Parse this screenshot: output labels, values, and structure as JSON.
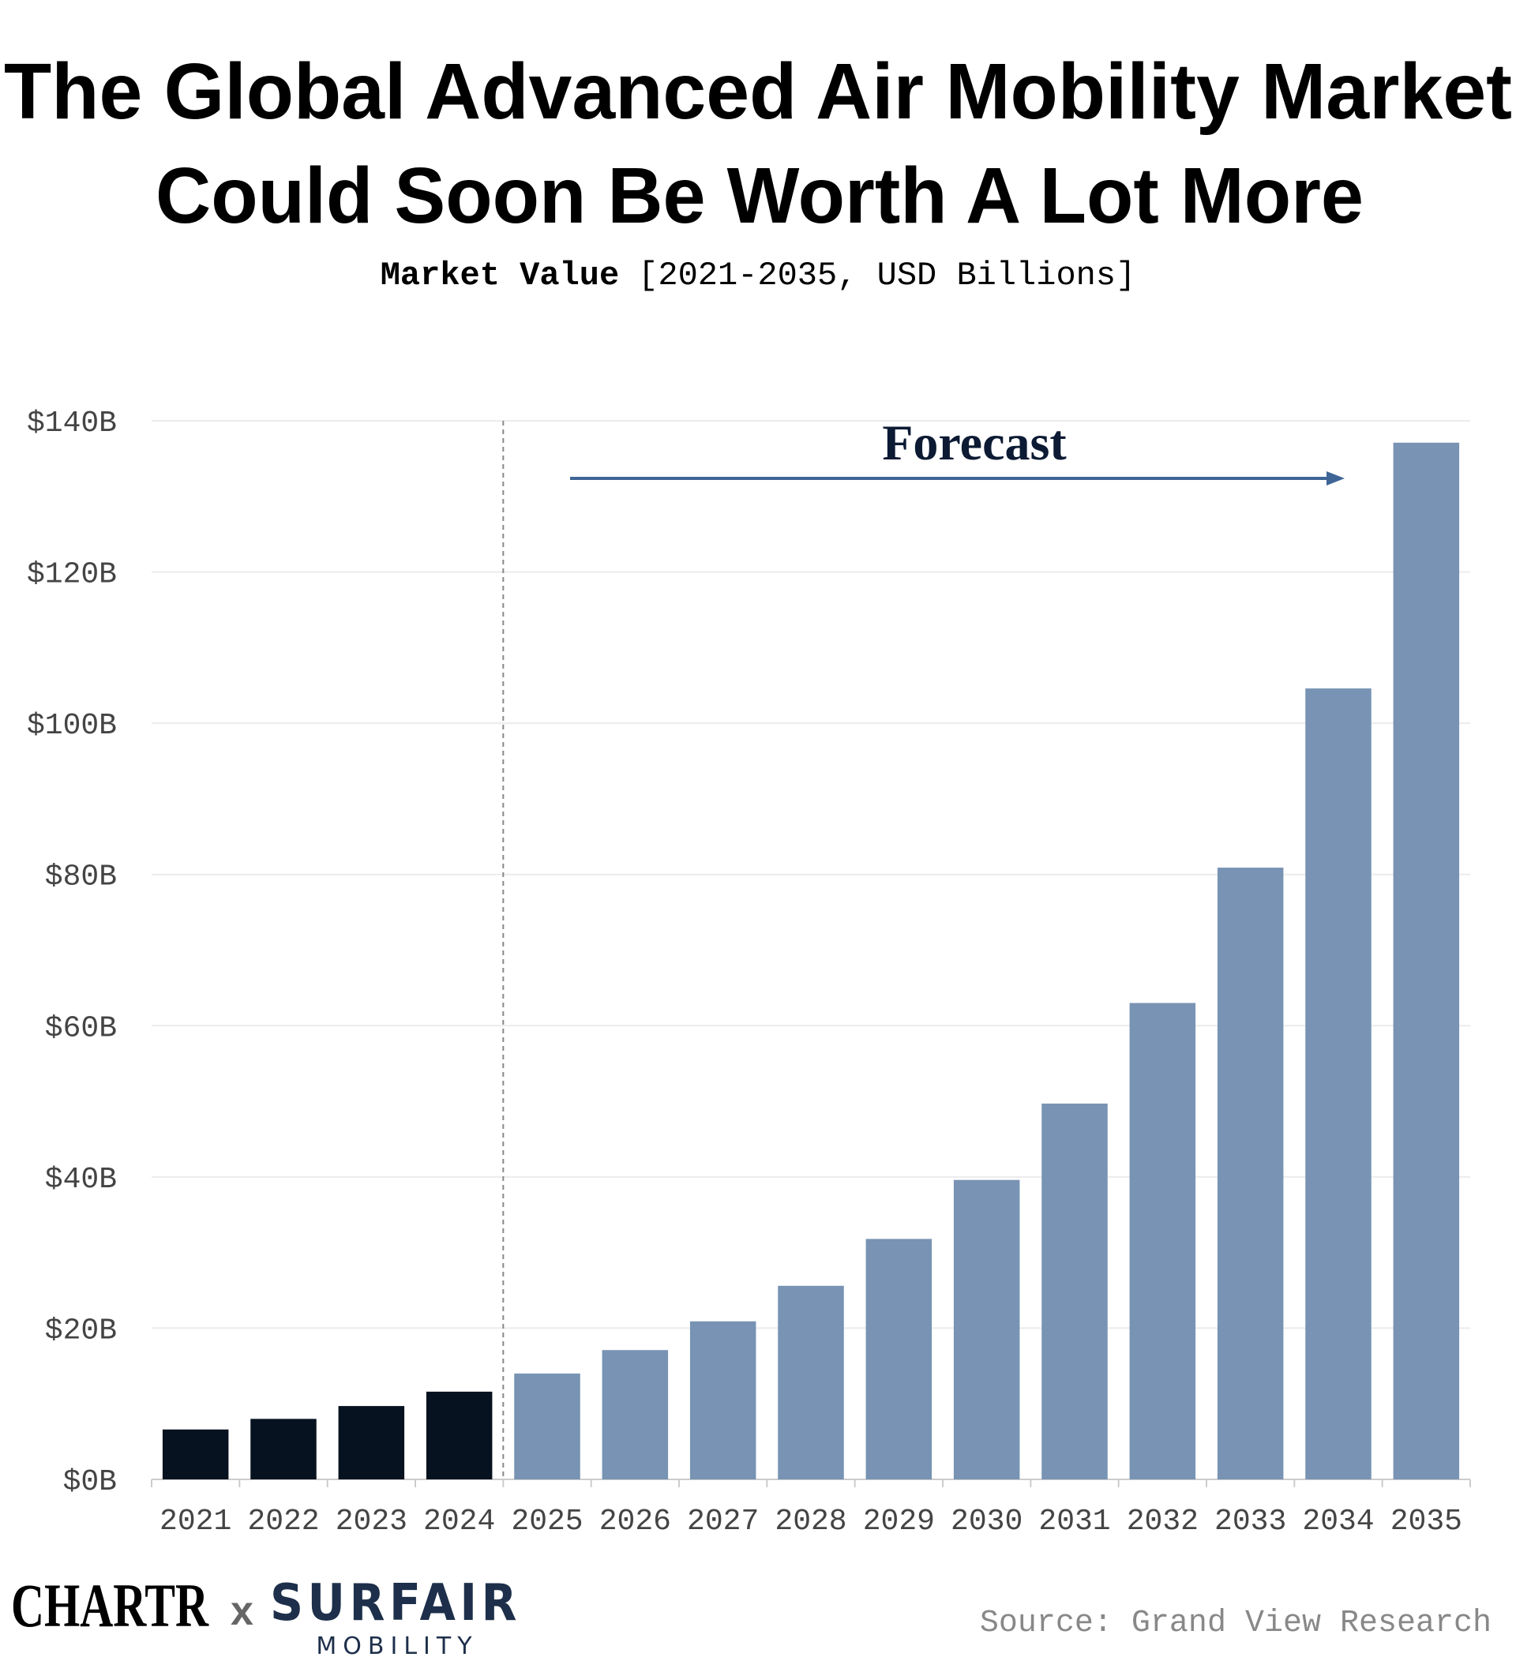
{
  "chart_data": {
    "type": "bar",
    "title": [
      "The Global Advanced Air Mobility Market",
      "Could Soon Be Worth A Lot More"
    ],
    "subtitle": {
      "bold": "Market Value",
      "rest": "[2021-2035, USD Billions]"
    },
    "annotation": "Forecast",
    "categories": [
      "2021",
      "2022",
      "2023",
      "2024",
      "2025",
      "2026",
      "2027",
      "2028",
      "2029",
      "2030",
      "2031",
      "2032",
      "2033",
      "2034",
      "2035"
    ],
    "values": [
      6.6,
      8.0,
      9.7,
      11.6,
      14.0,
      17.1,
      20.9,
      25.6,
      31.8,
      39.6,
      49.7,
      63.0,
      80.9,
      104.6,
      137.1
    ],
    "colors": [
      "#06121f",
      "#06121f",
      "#06121f",
      "#06121f",
      "#7893b3",
      "#7893b3",
      "#7893b3",
      "#7893b3",
      "#7893b3",
      "#7893b3",
      "#7893b3",
      "#7893b3",
      "#7893b3",
      "#7893b3",
      "#7893b3"
    ],
    "ylim": [
      0,
      140
    ],
    "yticks": [
      {
        "value": 0,
        "label": "$0B"
      },
      {
        "value": 20,
        "label": "$20B"
      },
      {
        "value": 40,
        "label": "$40B"
      },
      {
        "value": 60,
        "label": "$60B"
      },
      {
        "value": 80,
        "label": "$80B"
      },
      {
        "value": 100,
        "label": "$100B"
      },
      {
        "value": 120,
        "label": "$120B"
      },
      {
        "value": 140,
        "label": "$140B"
      }
    ],
    "grid": true,
    "source": "Source: Grand View Research",
    "branding": {
      "left": "CHARTR",
      "sep": "x",
      "right": "SURFAIR",
      "right_sub": "MOBILITY"
    }
  }
}
